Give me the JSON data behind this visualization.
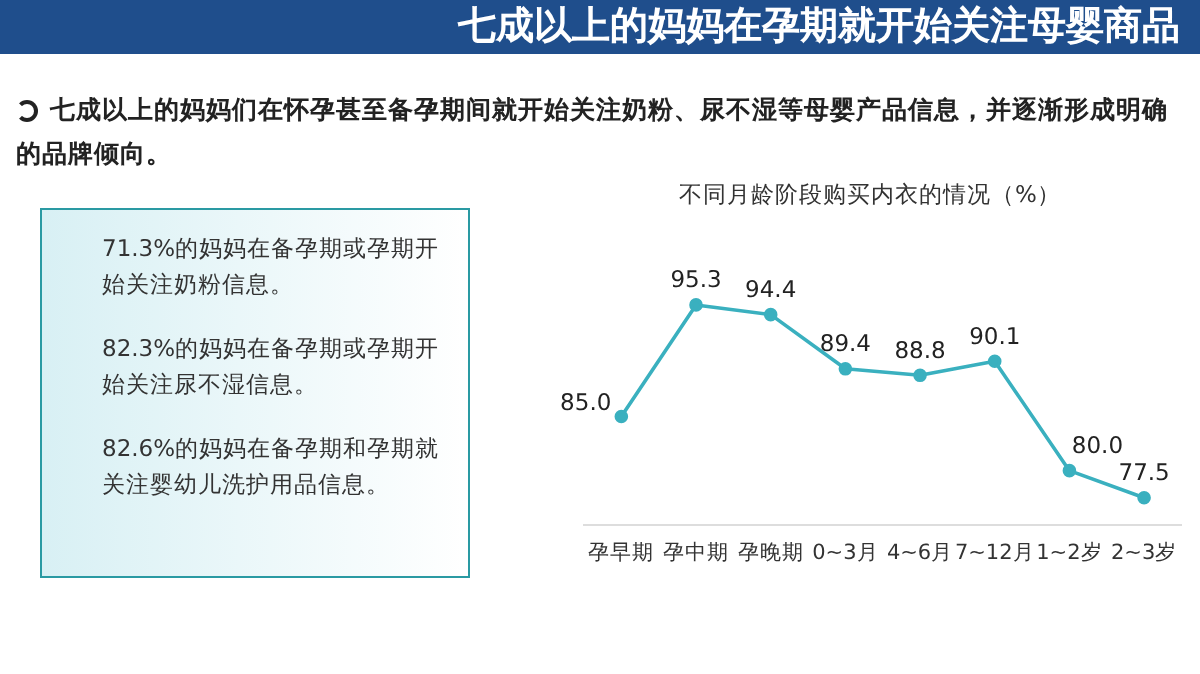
{
  "chart_data": {
    "type": "line",
    "title": "不同月龄阶段购买内衣的情况（%）",
    "categories": [
      "孕早期",
      "孕中期",
      "孕晚期",
      "0~3月",
      "4~6月",
      "7~12月",
      "1~2岁",
      "2~3岁"
    ],
    "series": [
      {
        "color": "#3ab0bf",
        "values": [
          85.0,
          95.3,
          94.4,
          89.4,
          88.8,
          90.1,
          80.0,
          77.5
        ],
        "value_labels": [
          "85.0",
          "95.3",
          "94.4",
          "89.4",
          "88.8",
          "90.1",
          "80.0",
          "77.5"
        ]
      }
    ],
    "tick_labels": "x",
    "marker": "circle",
    "line_style": "solid",
    "grid": false,
    "legend": false,
    "annotations": [
      "七成以上的妈妈在孕期就开始关注母婴商品",
      "七成以上的妈妈们在怀孕甚至备孕期间就开始关注奶粉、尿不湿等母婴产品信息，并逐渐形成明确的品牌倾向。",
      "71.3%的妈妈在备孕期或孕期开始关注奶粉信息。",
      "82.3%的妈妈在备孕期或孕期开始关注尿不湿信息。",
      "82.6%的妈妈在备孕期和孕期就关注婴幼儿洗护用品信息。"
    ]
  }
}
